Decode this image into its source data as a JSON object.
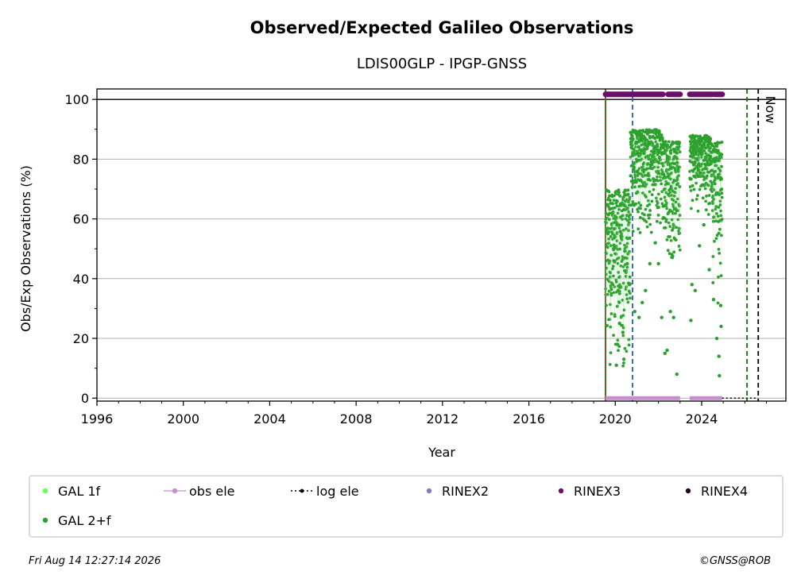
{
  "chart_data": {
    "type": "scatter",
    "title": "Observed/Expected Galileo Observations",
    "subtitle": "LDIS00GLP - IPGP-GNSS",
    "xlabel": "Year",
    "ylabel": "Obs/Exp Observations (%)",
    "xlim": [
      1996,
      2027.9
    ],
    "ylim": [
      -1,
      103.5
    ],
    "xticks": [
      1996,
      2000,
      2004,
      2008,
      2012,
      2016,
      2020,
      2024
    ],
    "xtick_labels": [
      "1996",
      "2000",
      "2004",
      "2008",
      "2012",
      "2016",
      "2020",
      "2024"
    ],
    "yticks": [
      0,
      20,
      40,
      60,
      80,
      100
    ],
    "ytick_labels": [
      "0",
      "20",
      "40",
      "60",
      "80",
      "100"
    ],
    "grid": "horizontal",
    "reference_line_y": 100,
    "vlines": [
      {
        "x": 2019.55,
        "color": "#008000",
        "style": "solid"
      },
      {
        "x": 2019.55,
        "color": "#d62728",
        "style": "dotted"
      },
      {
        "x": 2020.8,
        "color": "#1f5fbf",
        "style": "dashed"
      },
      {
        "x": 2026.1,
        "color": "#008000",
        "style": "dashed"
      },
      {
        "x": 2026.62,
        "color": "#000000",
        "style": "dashed",
        "label": "Now"
      }
    ],
    "rinex3_segments": [
      [
        2019.55,
        2020.7
      ],
      [
        2020.75,
        2022.2
      ],
      [
        2022.45,
        2023.0
      ],
      [
        2023.45,
        2024.5
      ],
      [
        2024.6,
        2024.95
      ]
    ],
    "obs_ele_segments": [
      [
        2019.55,
        2023.0
      ],
      [
        2023.45,
        2024.95
      ]
    ],
    "log_ele_segment": [
      2024.95,
      2026.62
    ],
    "gal_2f_segments": [
      {
        "start": 2019.55,
        "end": 2020.7,
        "low": 10,
        "high": 70
      },
      {
        "start": 2020.7,
        "end": 2022.2,
        "low": 55,
        "high": 90
      },
      {
        "start": 2022.2,
        "end": 2023.0,
        "low": 40,
        "high": 86
      },
      {
        "start": 2023.45,
        "end": 2024.5,
        "low": 60,
        "high": 88
      },
      {
        "start": 2024.5,
        "end": 2024.95,
        "low": 30,
        "high": 86
      }
    ],
    "gal_2f_outliers": [
      [
        2020.05,
        11
      ],
      [
        2020.1,
        18
      ],
      [
        2020.2,
        25
      ],
      [
        2020.35,
        22
      ],
      [
        2020.4,
        13
      ],
      [
        2020.55,
        45
      ],
      [
        2020.65,
        38
      ],
      [
        2020.9,
        29
      ],
      [
        2021.1,
        27
      ],
      [
        2021.25,
        32
      ],
      [
        2021.4,
        36
      ],
      [
        2021.6,
        45
      ],
      [
        2021.85,
        52
      ],
      [
        2022.0,
        45
      ],
      [
        2022.15,
        27
      ],
      [
        2022.3,
        15
      ],
      [
        2022.4,
        16
      ],
      [
        2022.55,
        29
      ],
      [
        2022.7,
        27
      ],
      [
        2022.85,
        8
      ],
      [
        2023.5,
        26
      ],
      [
        2023.55,
        38
      ],
      [
        2023.7,
        36
      ],
      [
        2023.9,
        51
      ],
      [
        2024.1,
        58
      ],
      [
        2024.35,
        43
      ],
      [
        2024.55,
        33
      ],
      [
        2024.7,
        20
      ],
      [
        2024.8,
        14
      ],
      [
        2024.82,
        7.5
      ],
      [
        2024.88,
        31
      ],
      [
        2024.9,
        24
      ]
    ],
    "legend": {
      "placement": "bottom",
      "entries": [
        {
          "label": "GAL 1f",
          "color": "#66ff55",
          "kind": "dot"
        },
        {
          "label": "obs ele",
          "color": "#c88fd0",
          "kind": "line-dot"
        },
        {
          "label": "log ele",
          "color": "#000000",
          "kind": "dotted-line"
        },
        {
          "label": "RINEX2",
          "color": "#8878bf",
          "kind": "dot"
        },
        {
          "label": "RINEX3",
          "color": "#6a0f6a",
          "kind": "dot"
        },
        {
          "label": "RINEX4",
          "color": "#250520",
          "kind": "dot"
        },
        {
          "label": "GAL 2+f",
          "color": "#2ca02c",
          "kind": "dot"
        }
      ]
    }
  },
  "footer": {
    "timestamp": "Fri Aug 14 12:27:14 2026",
    "credit": "©GNSS@ROB"
  }
}
